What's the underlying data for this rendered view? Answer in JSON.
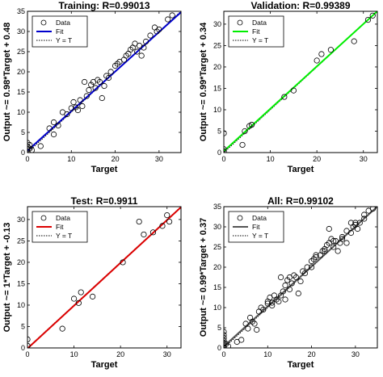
{
  "chart_data": [
    {
      "type": "scatter",
      "title": "Training: R=0.99013",
      "xlabel": "Target",
      "ylabel": "Output ~= 0.98*Target + 0.48",
      "xlim": [
        0,
        35
      ],
      "ylim": [
        0,
        35
      ],
      "xticks": [
        0,
        10,
        20,
        30
      ],
      "yticks": [
        0,
        5,
        10,
        15,
        20,
        25,
        30,
        35
      ],
      "fit": {
        "slope": 0.98,
        "intercept": 0.48,
        "color": "#0000cc"
      },
      "legend": {
        "position": "top-left",
        "entries": [
          "Data",
          "Fit",
          "Y = T"
        ]
      },
      "points": [
        [
          0,
          0.3
        ],
        [
          0,
          0.8
        ],
        [
          0,
          1.5
        ],
        [
          0,
          2.4
        ],
        [
          0.5,
          1.0
        ],
        [
          0.5,
          1.9
        ],
        [
          1,
          0.6
        ],
        [
          3,
          1.6
        ],
        [
          5,
          6
        ],
        [
          6,
          7.5
        ],
        [
          6,
          4.5
        ],
        [
          7,
          6.7
        ],
        [
          8,
          10
        ],
        [
          9,
          9.5
        ],
        [
          10,
          11
        ],
        [
          10.5,
          12.5
        ],
        [
          11,
          11.2
        ],
        [
          11.5,
          10.5
        ],
        [
          12,
          13
        ],
        [
          12.5,
          11.5
        ],
        [
          13,
          17.5
        ],
        [
          13.5,
          14
        ],
        [
          14,
          15.5
        ],
        [
          14.5,
          16.8
        ],
        [
          15,
          17.5
        ],
        [
          15.5,
          16
        ],
        [
          16,
          18
        ],
        [
          16.5,
          17.5
        ],
        [
          17,
          13.5
        ],
        [
          17.5,
          16.5
        ],
        [
          18,
          19
        ],
        [
          18.5,
          18.5
        ],
        [
          19,
          20
        ],
        [
          20,
          21.5
        ],
        [
          20.5,
          22
        ],
        [
          21,
          22.5
        ],
        [
          22,
          23
        ],
        [
          22.5,
          24
        ],
        [
          23,
          24.5
        ],
        [
          23.5,
          25.5
        ],
        [
          24,
          26
        ],
        [
          24.5,
          27
        ],
        [
          25,
          25
        ],
        [
          25.5,
          26.5
        ],
        [
          26,
          24
        ],
        [
          26.5,
          26
        ],
        [
          27,
          27.5
        ],
        [
          28,
          29
        ],
        [
          29,
          31
        ],
        [
          29.5,
          30
        ],
        [
          30,
          30.5
        ],
        [
          32,
          33
        ],
        [
          33,
          34
        ]
      ]
    },
    {
      "type": "scatter",
      "title": "Validation: R=0.99389",
      "xlabel": "Target",
      "ylabel": "Output ~= 0.99*Target + 0.34",
      "xlim": [
        0,
        33
      ],
      "ylim": [
        0,
        33
      ],
      "xticks": [
        0,
        10,
        20,
        30
      ],
      "yticks": [
        0,
        5,
        10,
        15,
        20,
        25,
        30
      ],
      "fit": {
        "slope": 0.99,
        "intercept": 0.34,
        "color": "#00ee00"
      },
      "legend": {
        "position": "top-left",
        "entries": [
          "Data",
          "Fit",
          "Y = T"
        ]
      },
      "points": [
        [
          0,
          0.3
        ],
        [
          0,
          0.8
        ],
        [
          0,
          4.5
        ],
        [
          4,
          1.8
        ],
        [
          4.5,
          5
        ],
        [
          5.5,
          6.2
        ],
        [
          6,
          6.5
        ],
        [
          13,
          13
        ],
        [
          15,
          14.5
        ],
        [
          20,
          21.5
        ],
        [
          21,
          23
        ],
        [
          23,
          24
        ],
        [
          28,
          26
        ],
        [
          31,
          31
        ],
        [
          32,
          32
        ]
      ]
    },
    {
      "type": "scatter",
      "title": "Test: R=0.9911",
      "xlabel": "Target",
      "ylabel": "Output ~= 1*Target + -0.13",
      "xlim": [
        0,
        33
      ],
      "ylim": [
        0,
        33
      ],
      "xticks": [
        0,
        10,
        20,
        30
      ],
      "yticks": [
        0,
        5,
        10,
        15,
        20,
        25,
        30
      ],
      "fit": {
        "slope": 1.0,
        "intercept": -0.13,
        "color": "#dd0000"
      },
      "legend": {
        "position": "top-left",
        "entries": [
          "Data",
          "Fit",
          "Y = T"
        ]
      },
      "points": [
        [
          0,
          0.5
        ],
        [
          0,
          2
        ],
        [
          7.5,
          4.5
        ],
        [
          10,
          11.5
        ],
        [
          11,
          10.5
        ],
        [
          11.5,
          13
        ],
        [
          14,
          12
        ],
        [
          20.5,
          20
        ],
        [
          24,
          29.5
        ],
        [
          25,
          26.5
        ],
        [
          27,
          27
        ],
        [
          29,
          28.5
        ],
        [
          30,
          31
        ],
        [
          30.5,
          29.5
        ]
      ]
    },
    {
      "type": "scatter",
      "title": "All: R=0.99102",
      "xlabel": "Target",
      "ylabel": "Output ~= 0.99*Target + 0.37",
      "xlim": [
        0,
        35
      ],
      "ylim": [
        0,
        35
      ],
      "xticks": [
        0,
        10,
        20,
        30
      ],
      "yticks": [
        0,
        5,
        10,
        15,
        20,
        25,
        30,
        35
      ],
      "fit": {
        "slope": 0.99,
        "intercept": 0.37,
        "color": "#555555"
      },
      "legend": {
        "position": "top-left",
        "entries": [
          "Data",
          "Fit",
          "Y = T"
        ]
      },
      "points": [
        [
          0,
          0.2
        ],
        [
          0,
          0.6
        ],
        [
          0,
          1.2
        ],
        [
          0,
          1.8
        ],
        [
          0,
          2.5
        ],
        [
          0,
          3.2
        ],
        [
          0,
          4
        ],
        [
          0.5,
          1
        ],
        [
          1,
          0.4
        ],
        [
          3,
          1.5
        ],
        [
          4,
          2
        ],
        [
          5,
          6
        ],
        [
          5.5,
          4.8
        ],
        [
          6,
          7.5
        ],
        [
          6.5,
          6.5
        ],
        [
          7,
          6
        ],
        [
          7.5,
          4.5
        ],
        [
          8,
          9
        ],
        [
          8.5,
          10
        ],
        [
          9,
          9.5
        ],
        [
          10,
          11
        ],
        [
          10,
          11.5
        ],
        [
          10.5,
          12.5
        ],
        [
          11,
          10.5
        ],
        [
          11,
          11.2
        ],
        [
          11.5,
          13
        ],
        [
          12,
          12
        ],
        [
          12.5,
          11.5
        ],
        [
          13,
          13
        ],
        [
          13,
          17.5
        ],
        [
          13.5,
          14
        ],
        [
          14,
          15.5
        ],
        [
          14,
          12
        ],
        [
          14.5,
          16.8
        ],
        [
          15,
          14.5
        ],
        [
          15,
          17.5
        ],
        [
          15.5,
          16
        ],
        [
          16,
          18
        ],
        [
          16.5,
          17.5
        ],
        [
          17,
          13.5
        ],
        [
          17.5,
          16.5
        ],
        [
          18,
          19
        ],
        [
          18.5,
          18.5
        ],
        [
          19,
          20
        ],
        [
          20,
          21.5
        ],
        [
          20,
          20
        ],
        [
          20.5,
          22
        ],
        [
          21,
          22.5
        ],
        [
          21,
          23
        ],
        [
          22,
          23
        ],
        [
          22.5,
          24
        ],
        [
          23,
          24.5
        ],
        [
          23,
          24
        ],
        [
          23.5,
          25.5
        ],
        [
          24,
          26
        ],
        [
          24,
          29.5
        ],
        [
          24.5,
          27
        ],
        [
          25,
          25
        ],
        [
          25,
          26.5
        ],
        [
          25.5,
          26.5
        ],
        [
          26,
          24
        ],
        [
          26.5,
          26
        ],
        [
          27,
          27.5
        ],
        [
          27,
          27
        ],
        [
          28,
          29
        ],
        [
          28,
          26
        ],
        [
          29,
          31
        ],
        [
          29,
          28.5
        ],
        [
          29.5,
          30
        ],
        [
          30,
          30.5
        ],
        [
          30,
          31
        ],
        [
          30.5,
          29.5
        ],
        [
          31,
          31
        ],
        [
          32,
          33
        ],
        [
          32,
          32
        ],
        [
          33,
          34
        ],
        [
          34,
          34.5
        ]
      ]
    }
  ]
}
